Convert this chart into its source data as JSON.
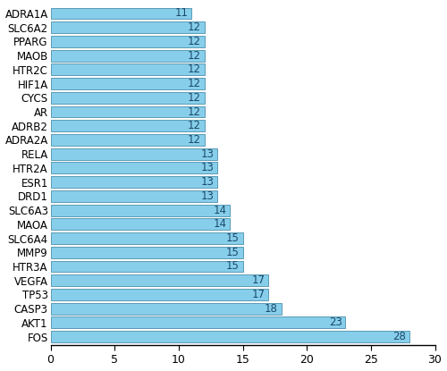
{
  "categories": [
    "ADRA1A",
    "SLC6A2",
    "PPARG",
    "MAOB",
    "HTR2C",
    "HIF1A",
    "CYCS",
    "AR",
    "ADRB2",
    "ADRA2A",
    "RELA",
    "HTR2A",
    "ESR1",
    "DRD1",
    "SLC6A3",
    "MAOA",
    "SLC6A4",
    "MMP9",
    "HTR3A",
    "VEGFA",
    "TP53",
    "CASP3",
    "AKT1",
    "FOS"
  ],
  "values": [
    11,
    12,
    12,
    12,
    12,
    12,
    12,
    12,
    12,
    12,
    13,
    13,
    13,
    13,
    14,
    14,
    15,
    15,
    15,
    17,
    17,
    18,
    23,
    28
  ],
  "bar_color": "#87CEEB",
  "bar_edge_color": "#4a8faa",
  "value_color": "#1a4a6b",
  "xlim": [
    0,
    30
  ],
  "xticks": [
    0,
    5,
    10,
    15,
    20,
    25,
    30
  ],
  "label_fontsize": 8.5,
  "value_fontsize": 8.5,
  "tick_fontsize": 9,
  "bar_height": 0.82,
  "background_color": "#ffffff"
}
